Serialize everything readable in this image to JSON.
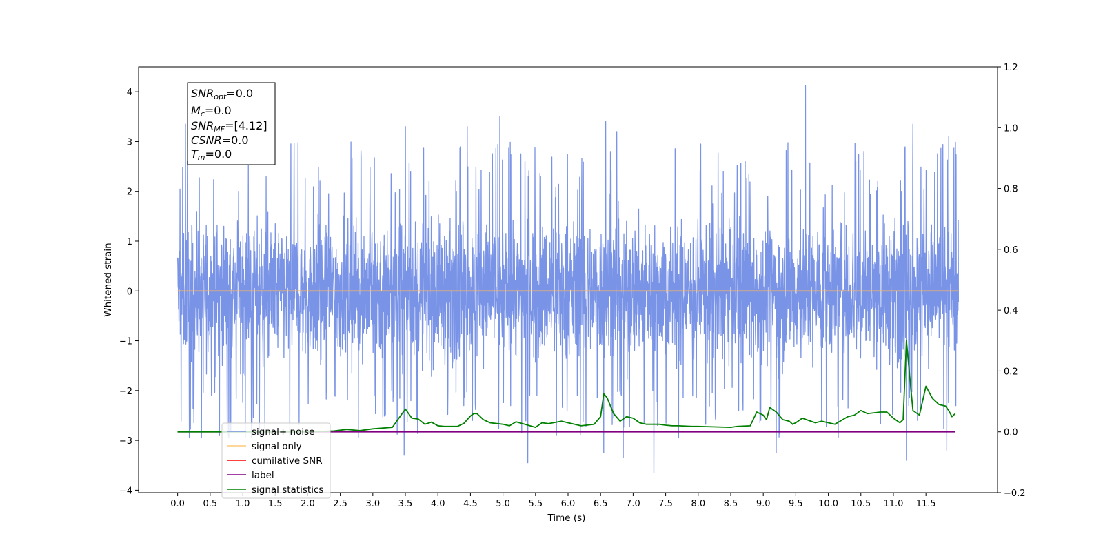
{
  "chart_data": {
    "type": "line",
    "xlabel": "Time (s)",
    "ylabel_left": "Whitened strain",
    "ylabel_right": "",
    "xlim": [
      -0.6,
      12.6
    ],
    "ylim_left": [
      -4.05,
      4.5
    ],
    "ylim_right": [
      -0.2,
      1.2
    ],
    "x_ticks": [
      "0.0",
      "0.5",
      "1.0",
      "1.5",
      "2.0",
      "2.5",
      "3.0",
      "3.5",
      "4.0",
      "4.5",
      "5.0",
      "5.5",
      "6.0",
      "6.5",
      "7.0",
      "7.5",
      "8.0",
      "8.5",
      "9.0",
      "9.5",
      "10.0",
      "10.5",
      "11.0",
      "11.5"
    ],
    "y_ticks_left": [
      "4",
      "3",
      "2",
      "1",
      "0",
      "−1",
      "−2",
      "−3",
      "−4"
    ],
    "y_ticks_right": [
      "1.2",
      "1.0",
      "0.8",
      "0.6",
      "0.4",
      "0.2",
      "0.0",
      "−0.2"
    ],
    "noise": {
      "x_range": [
        0.0,
        12.0
      ],
      "envelope_typical": [
        -1.6,
        1.6
      ],
      "max": 4.12,
      "min": -3.65,
      "spikes": [
        {
          "x": 0.12,
          "y": 3.35
        },
        {
          "x": 0.15,
          "y": 2.6
        },
        {
          "x": 3.5,
          "y": 3.3
        },
        {
          "x": 4.45,
          "y": 3.3
        },
        {
          "x": 4.95,
          "y": 3.5
        },
        {
          "x": 6.58,
          "y": 3.4
        },
        {
          "x": 6.75,
          "y": 3.2
        },
        {
          "x": 9.65,
          "y": 4.12
        },
        {
          "x": 11.3,
          "y": 3.35
        },
        {
          "x": 11.85,
          "y": 3.1
        },
        {
          "x": 0.18,
          "y": -2.95
        },
        {
          "x": 3.48,
          "y": -3.3
        },
        {
          "x": 5.38,
          "y": -3.45
        },
        {
          "x": 6.55,
          "y": -3.25
        },
        {
          "x": 6.85,
          "y": -3.35
        },
        {
          "x": 7.32,
          "y": -3.65
        },
        {
          "x": 9.2,
          "y": -3.25
        },
        {
          "x": 11.2,
          "y": -3.4
        },
        {
          "x": 11.82,
          "y": -3.2
        }
      ]
    },
    "signal_only": {
      "x": [
        0,
        12
      ],
      "y": [
        0,
        0
      ]
    },
    "label_line": {
      "x": [
        0,
        11.95
      ],
      "y_right": [
        0.0,
        0.0
      ]
    },
    "signal_statistics": {
      "x": [
        0.0,
        2.0,
        2.4,
        2.6,
        2.8,
        3.0,
        3.3,
        3.45,
        3.5,
        3.6,
        3.7,
        3.8,
        3.9,
        4.0,
        4.1,
        4.3,
        4.4,
        4.5,
        4.55,
        4.6,
        4.7,
        4.8,
        5.0,
        5.1,
        5.2,
        5.5,
        5.6,
        5.7,
        5.9,
        6.0,
        6.2,
        6.4,
        6.5,
        6.55,
        6.6,
        6.7,
        6.8,
        6.9,
        7.0,
        7.1,
        7.2,
        7.4,
        7.5,
        7.6,
        7.7,
        7.9,
        8.0,
        8.5,
        8.6,
        8.8,
        8.9,
        9.0,
        9.05,
        9.1,
        9.2,
        9.3,
        9.4,
        9.45,
        9.5,
        9.6,
        9.8,
        9.9,
        10.0,
        10.1,
        10.3,
        10.4,
        10.5,
        10.6,
        10.8,
        10.9,
        11.0,
        11.1,
        11.15,
        11.2,
        11.3,
        11.4,
        11.5,
        11.6,
        11.7,
        11.8,
        11.85,
        11.9,
        11.95
      ],
      "y": [
        0.0,
        0.0,
        0.003,
        0.008,
        0.004,
        0.01,
        0.015,
        0.06,
        0.075,
        0.045,
        0.042,
        0.025,
        0.032,
        0.02,
        0.018,
        0.018,
        0.028,
        0.052,
        0.06,
        0.06,
        0.04,
        0.03,
        0.025,
        0.02,
        0.033,
        0.015,
        0.03,
        0.027,
        0.035,
        0.03,
        0.02,
        0.025,
        0.05,
        0.125,
        0.112,
        0.06,
        0.035,
        0.05,
        0.045,
        0.03,
        0.025,
        0.025,
        0.022,
        0.02,
        0.02,
        0.018,
        0.018,
        0.015,
        0.018,
        0.02,
        0.065,
        0.055,
        0.04,
        0.08,
        0.065,
        0.04,
        0.035,
        0.025,
        0.03,
        0.045,
        0.03,
        0.035,
        0.03,
        0.025,
        0.05,
        0.055,
        0.07,
        0.06,
        0.065,
        0.065,
        0.045,
        0.03,
        0.04,
        0.3,
        0.07,
        0.055,
        0.15,
        0.11,
        0.09,
        0.085,
        0.07,
        0.05,
        0.06
      ]
    },
    "annotation_box": {
      "lines": [
        {
          "base": "SNR",
          "sub": "opt",
          "value": "=0.0"
        },
        {
          "base": "M",
          "sub": "c",
          "value": "=0.0"
        },
        {
          "base": "SNR",
          "sub": "MF",
          "value": "=[4.12]"
        },
        {
          "base": "CSNR",
          "sub": "",
          "value": "=0.0"
        },
        {
          "base": "T",
          "sub": "m",
          "value": "=0.0"
        }
      ]
    },
    "legend": {
      "position": "lower-left",
      "entries": [
        {
          "label": "signal+ noise",
          "color": "#7993e6"
        },
        {
          "label": "signal only",
          "color": "#ffca7a"
        },
        {
          "label": "cumilative SNR",
          "color": "#ff0000"
        },
        {
          "label": "label",
          "color": "#800080"
        },
        {
          "label": "signal statistics",
          "color": "#008000"
        }
      ]
    },
    "colors": {
      "noise": "#7993e6",
      "signal_only": "#ffb561",
      "label_line": "#800080",
      "signal_statistics": "#008000"
    }
  }
}
